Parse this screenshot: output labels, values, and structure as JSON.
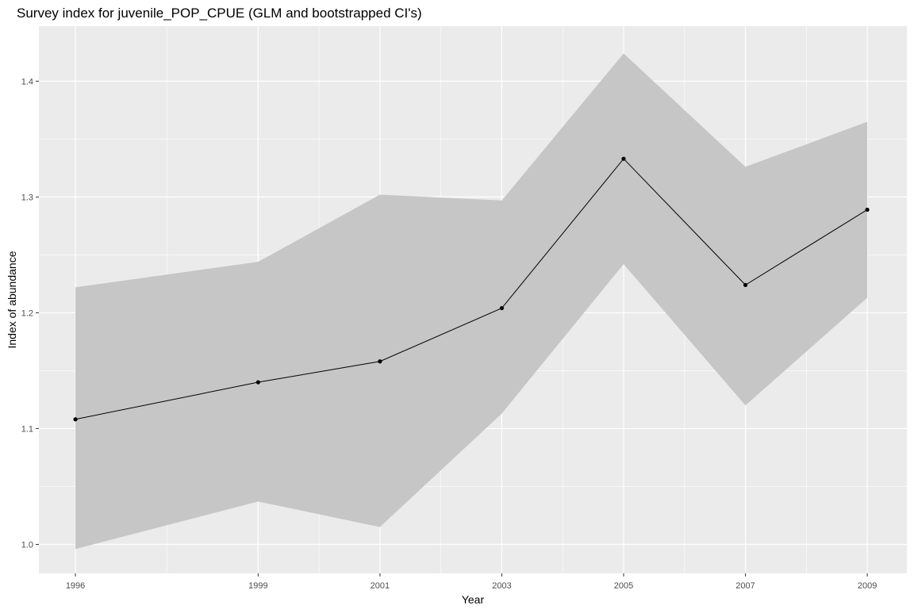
{
  "chart_data": {
    "type": "line",
    "title": "Survey index for juvenile_POP_CPUE (GLM and bootstrapped CI's)",
    "xlabel": "Year",
    "ylabel": "Index of abundance",
    "x_ticks": [
      "1996",
      "1999",
      "2001",
      "2003",
      "2005",
      "2007",
      "2009"
    ],
    "y_ticks": [
      "1.0",
      "1.1",
      "1.2",
      "1.3",
      "1.4"
    ],
    "xlim": [
      1995.4,
      2009.65
    ],
    "ylim": [
      0.975,
      1.4475
    ],
    "grid": true,
    "legend": "none",
    "colors": {
      "panel": "#EBEBEB",
      "grid": "#FFFFFF",
      "ribbon": "#C6C6C6",
      "line": "#000000"
    },
    "series": [
      {
        "x": [
          1996,
          1999,
          2001,
          2003,
          2005,
          2007,
          2009
        ],
        "values": [
          1.108,
          1.14,
          1.158,
          1.204,
          1.333,
          1.224,
          1.289
        ],
        "lower": [
          0.996,
          1.037,
          1.015,
          1.113,
          1.242,
          1.12,
          1.213
        ],
        "upper": [
          1.222,
          1.244,
          1.302,
          1.297,
          1.424,
          1.326,
          1.365
        ]
      }
    ]
  }
}
